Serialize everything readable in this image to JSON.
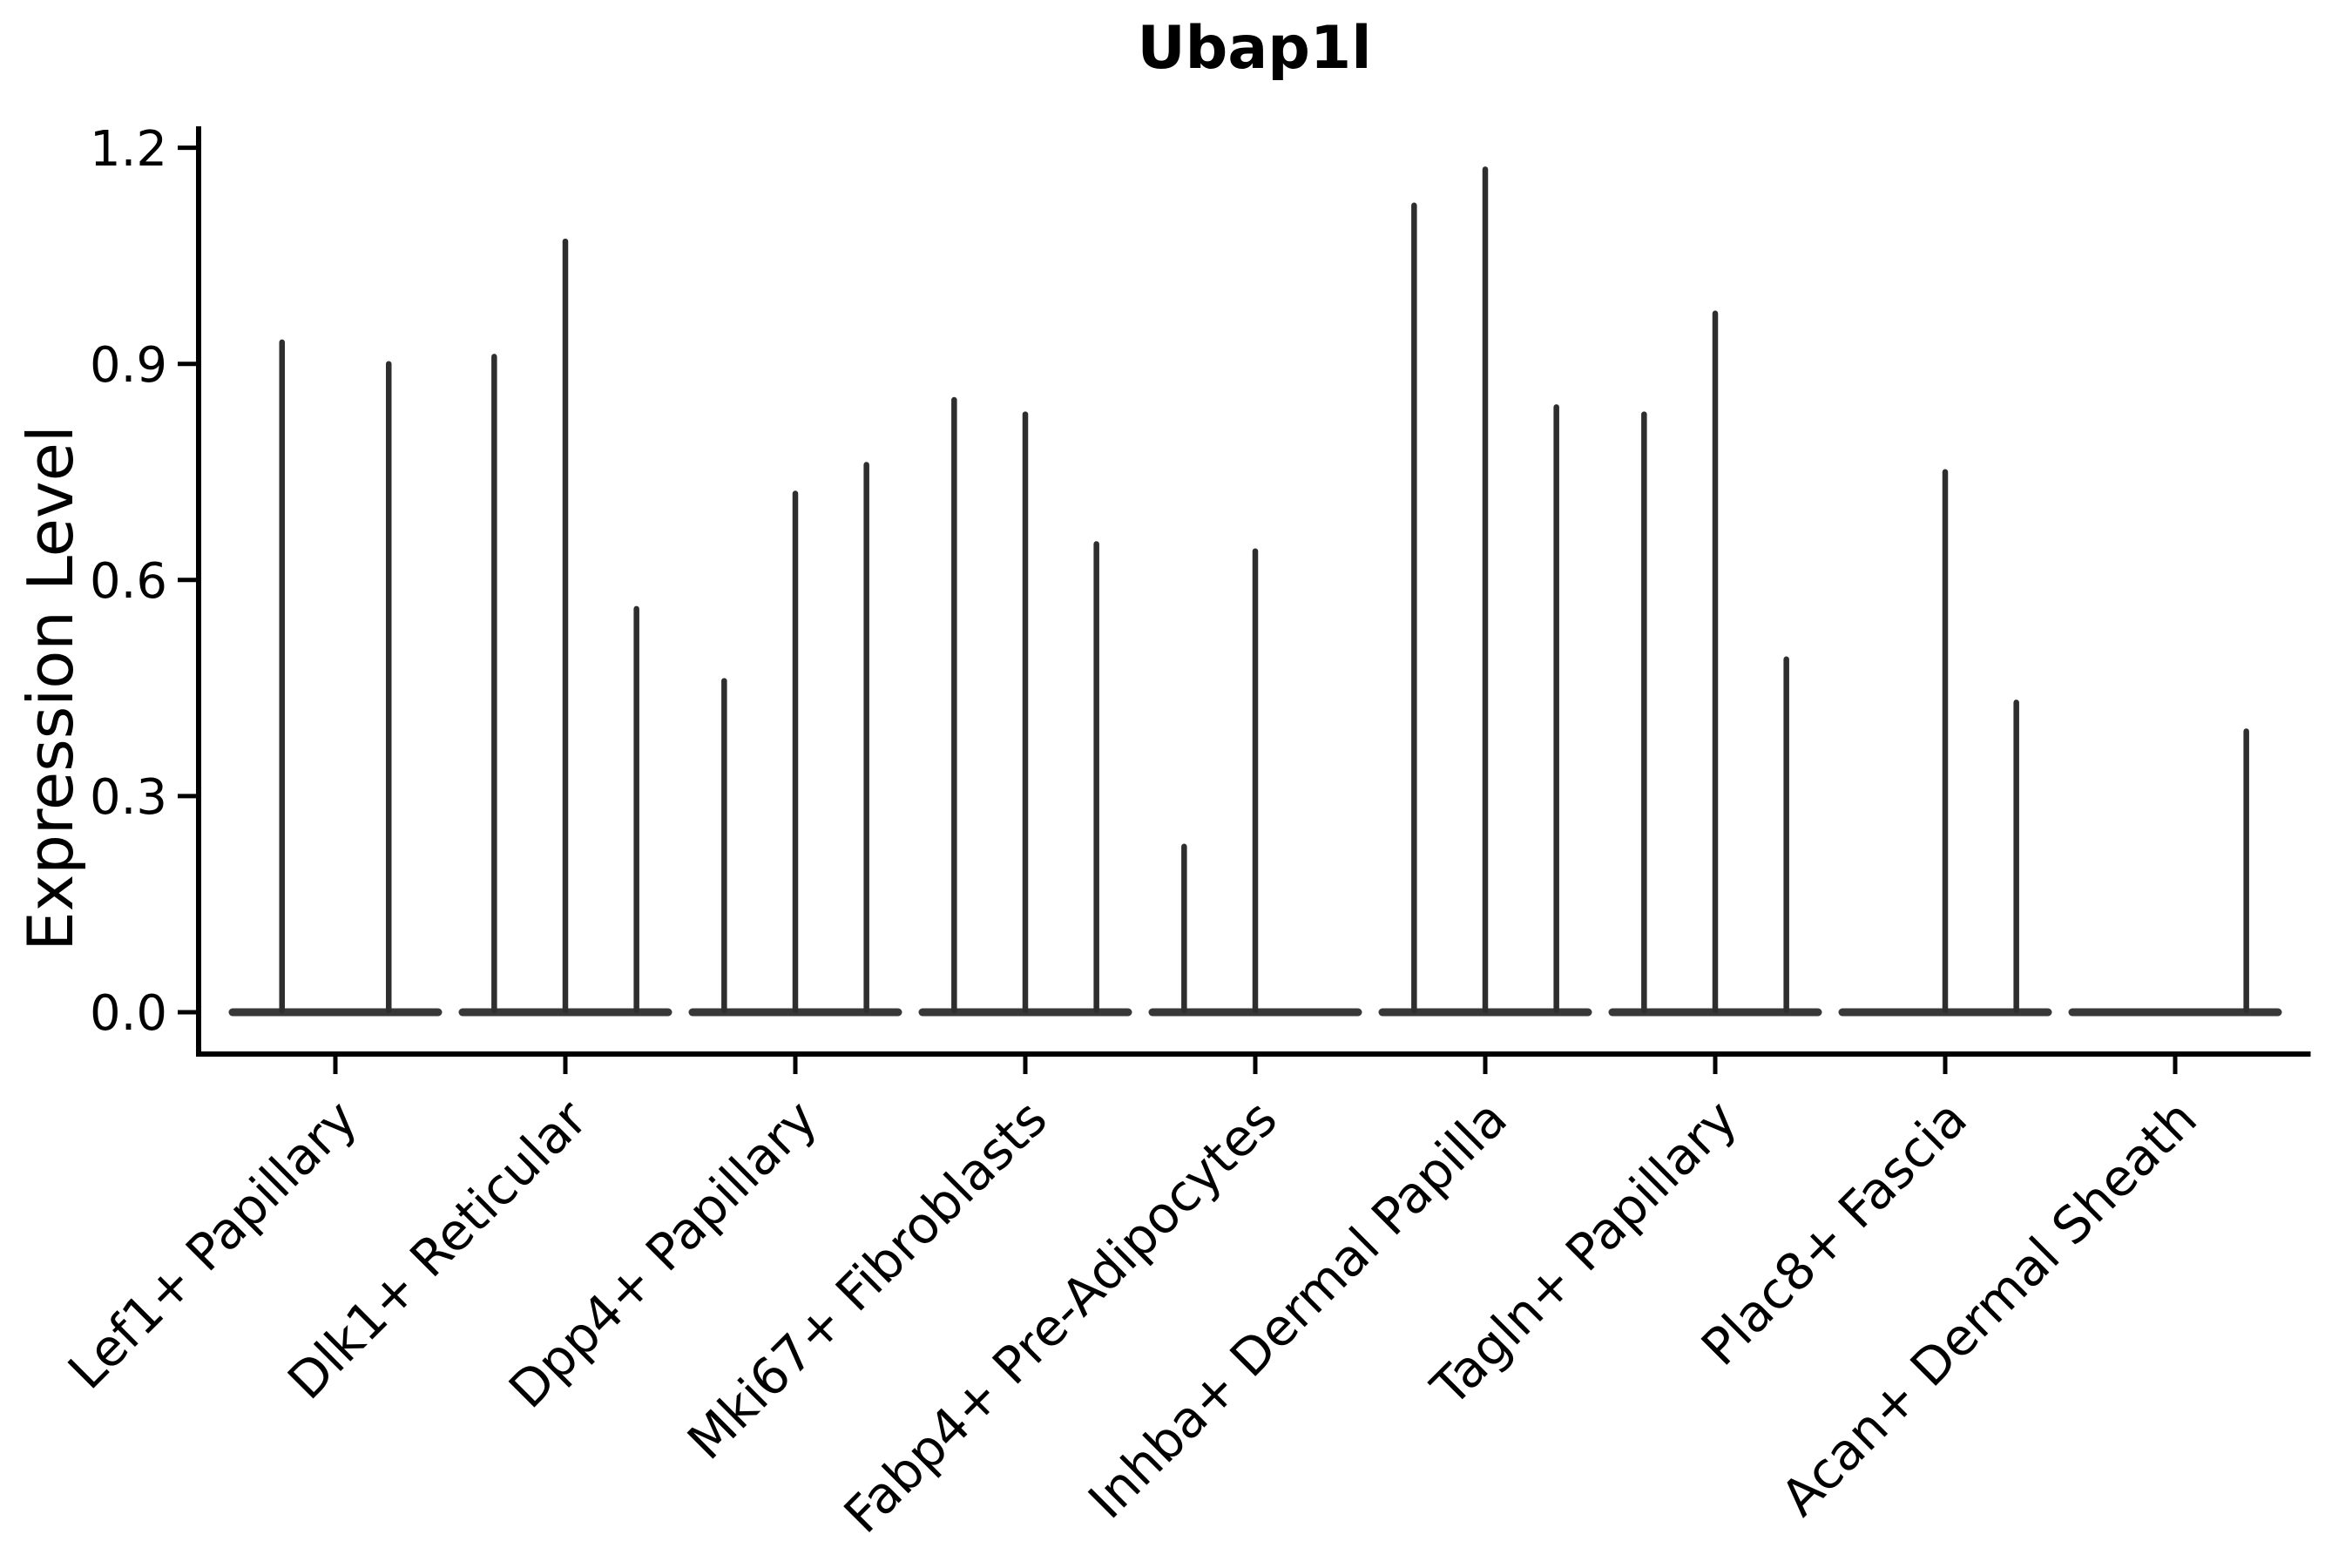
{
  "chart_data": {
    "type": "violin",
    "title": "Ubap1l",
    "xlabel": "",
    "ylabel": "Expression Level",
    "ylim": [
      0,
      1.23
    ],
    "yticks": [
      "0.0",
      "0.3",
      "0.6",
      "0.9",
      "1.2"
    ],
    "ytick_values": [
      0.0,
      0.3,
      0.6,
      0.9,
      1.2
    ],
    "grid": false,
    "legend_position": "none",
    "categories": [
      "Lef1+ Papillary",
      "Dlk1+ Reticular",
      "Dpp4+ Papillary",
      "Mki67+ Fibroblasts",
      "Fabp4+ Pre-Adipocytes",
      "Inhba+ Dermal Papilla",
      "Tagln+ Papillary",
      "Plac8+ Fascia",
      "Acan+ Dermal Sheath"
    ],
    "series": [
      {
        "category": "Lef1+ Papillary",
        "violin_max_values": [
          0.93,
          0.9
        ]
      },
      {
        "category": "Dlk1+ Reticular",
        "violin_max_values": [
          0.91,
          1.07,
          0.56
        ]
      },
      {
        "category": "Dpp4+ Papillary",
        "violin_max_values": [
          0.46,
          0.72,
          0.76
        ]
      },
      {
        "category": "Mki67+ Fibroblasts",
        "violin_max_values": [
          0.85,
          0.83,
          0.65
        ]
      },
      {
        "category": "Fabp4+ Pre-Adipocytes",
        "violin_max_values": [
          0.23,
          0.64,
          0
        ]
      },
      {
        "category": "Inhba+ Dermal Papilla",
        "violin_max_values": [
          1.12,
          1.17,
          0.84
        ]
      },
      {
        "category": "Tagln+ Papillary",
        "violin_max_values": [
          0.83,
          0.97,
          0.49
        ]
      },
      {
        "category": "Plac8+ Fascia",
        "violin_max_values": [
          0,
          0.75,
          0.43
        ]
      },
      {
        "category": "Acan+ Dermal Sheath",
        "violin_max_values": [
          0,
          0,
          0.39
        ]
      }
    ],
    "description": "Violin plot of gene expression; each group shows thin spike violins concentrated at 0 with narrow tails up to the max value."
  },
  "style": {
    "spike_color": "#2e2e2e",
    "base_color": "#383838",
    "axis_color": "#000000",
    "text_color": "#000000",
    "background": "#ffffff"
  }
}
